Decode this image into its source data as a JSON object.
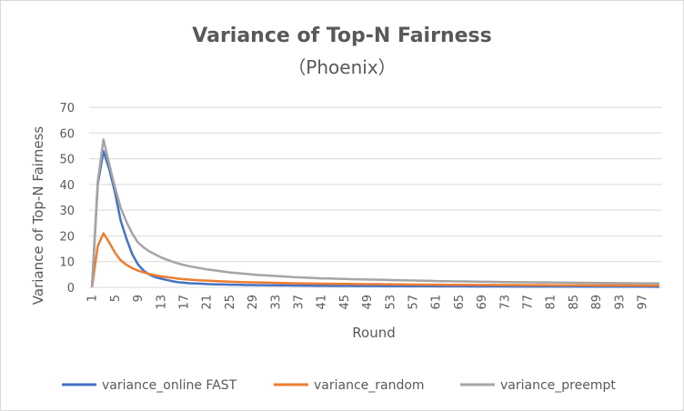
{
  "chart_data": {
    "type": "line",
    "title": "Variance of Top-N Fairness",
    "subtitle": "（Phoenix）",
    "xlabel": "Round",
    "ylabel": "Variance of Top-N Fairness",
    "ylim": [
      0,
      70
    ],
    "yticks": [
      "0",
      "10",
      "20",
      "30",
      "40",
      "50",
      "60",
      "70"
    ],
    "xticks": [
      "1",
      "5",
      "9",
      "13",
      "17",
      "21",
      "25",
      "29",
      "33",
      "37",
      "41",
      "45",
      "49",
      "53",
      "57",
      "61",
      "65",
      "69",
      "73",
      "77",
      "81",
      "85",
      "89",
      "93",
      "97"
    ],
    "x": [
      1,
      2,
      3,
      4,
      5,
      6,
      7,
      8,
      9,
      10,
      11,
      12,
      13,
      14,
      15,
      16,
      17,
      18,
      19,
      20,
      21,
      22,
      23,
      24,
      25,
      26,
      27,
      28,
      29,
      30,
      31,
      32,
      33,
      34,
      35,
      36,
      37,
      38,
      39,
      40,
      41,
      42,
      43,
      44,
      45,
      46,
      47,
      48,
      49,
      50,
      51,
      52,
      53,
      54,
      55,
      56,
      57,
      58,
      59,
      60,
      61,
      62,
      63,
      64,
      65,
      66,
      67,
      68,
      69,
      70,
      71,
      72,
      73,
      74,
      75,
      76,
      77,
      78,
      79,
      80,
      81,
      82,
      83,
      84,
      85,
      86,
      87,
      88,
      89,
      90,
      91,
      92,
      93,
      94,
      95,
      96,
      97,
      98,
      99,
      100
    ],
    "grid": true,
    "legend": "bottom",
    "series": [
      {
        "name": "variance_online FAST",
        "color": "#4472c4",
        "values": [
          0,
          40,
          53,
          46,
          37,
          26,
          19,
          13,
          9,
          6.5,
          5,
          4,
          3.4,
          2.9,
          2.4,
          2,
          1.8,
          1.6,
          1.5,
          1.4,
          1.3,
          1.2,
          1.15,
          1.1,
          1.05,
          1,
          0.95,
          0.9,
          0.88,
          0.85,
          0.82,
          0.8,
          0.78,
          0.76,
          0.74,
          0.72,
          0.7,
          0.68,
          0.66,
          0.64,
          0.62,
          0.6,
          0.59,
          0.58,
          0.57,
          0.56,
          0.55,
          0.54,
          0.53,
          0.52,
          0.51,
          0.5,
          0.49,
          0.48,
          0.47,
          0.46,
          0.45,
          0.44,
          0.43,
          0.42,
          0.41,
          0.4,
          0.4,
          0.39,
          0.38,
          0.38,
          0.37,
          0.36,
          0.36,
          0.35,
          0.35,
          0.34,
          0.34,
          0.33,
          0.33,
          0.32,
          0.32,
          0.31,
          0.31,
          0.3,
          0.3,
          0.3,
          0.29,
          0.29,
          0.29,
          0.28,
          0.28,
          0.28,
          0.27,
          0.27,
          0.27,
          0.26,
          0.26,
          0.26,
          0.25,
          0.25,
          0.25,
          0.25,
          0.24,
          0.24
        ]
      },
      {
        "name": "variance_random",
        "color": "#ed7d31",
        "values": [
          0,
          16,
          21,
          17.5,
          13.5,
          10.5,
          8.8,
          7.5,
          6.5,
          5.8,
          5.2,
          4.7,
          4.3,
          4,
          3.7,
          3.4,
          3.2,
          3,
          2.85,
          2.7,
          2.6,
          2.5,
          2.4,
          2.3,
          2.2,
          2.1,
          2.05,
          2,
          1.95,
          1.9,
          1.85,
          1.8,
          1.75,
          1.7,
          1.65,
          1.6,
          1.55,
          1.5,
          1.48,
          1.45,
          1.42,
          1.4,
          1.38,
          1.36,
          1.34,
          1.32,
          1.3,
          1.28,
          1.26,
          1.24,
          1.22,
          1.2,
          1.18,
          1.16,
          1.14,
          1.12,
          1.1,
          1.08,
          1.06,
          1.04,
          1.02,
          1,
          0.99,
          0.98,
          0.97,
          0.96,
          0.95,
          0.94,
          0.93,
          0.92,
          0.91,
          0.9,
          0.89,
          0.88,
          0.87,
          0.86,
          0.85,
          0.84,
          0.83,
          0.82,
          0.81,
          0.8,
          0.8,
          0.79,
          0.79,
          0.78,
          0.78,
          0.77,
          0.77,
          0.76,
          0.76,
          0.75,
          0.75,
          0.74,
          0.74,
          0.73,
          0.73,
          0.72,
          0.72,
          0.71
        ]
      },
      {
        "name": "variance_preempt",
        "color": "#a5a5a5",
        "values": [
          0,
          41,
          57.5,
          48,
          39,
          31,
          25.5,
          21,
          17.5,
          15.5,
          14,
          12.8,
          11.7,
          10.8,
          10,
          9.3,
          8.7,
          8.2,
          7.8,
          7.4,
          7,
          6.7,
          6.4,
          6.1,
          5.8,
          5.6,
          5.4,
          5.2,
          5,
          4.8,
          4.7,
          4.55,
          4.4,
          4.3,
          4.15,
          4,
          3.9,
          3.8,
          3.7,
          3.6,
          3.5,
          3.45,
          3.4,
          3.3,
          3.25,
          3.2,
          3.15,
          3.1,
          3.05,
          3,
          2.95,
          2.9,
          2.85,
          2.8,
          2.75,
          2.7,
          2.65,
          2.6,
          2.55,
          2.5,
          2.45,
          2.4,
          2.38,
          2.35,
          2.3,
          2.28,
          2.25,
          2.2,
          2.18,
          2.15,
          2.1,
          2.08,
          2.05,
          2.02,
          2,
          1.98,
          1.96,
          1.94,
          1.92,
          1.9,
          1.88,
          1.86,
          1.84,
          1.82,
          1.8,
          1.78,
          1.76,
          1.74,
          1.72,
          1.7,
          1.68,
          1.66,
          1.64,
          1.62,
          1.6,
          1.58,
          1.56,
          1.55,
          1.54,
          1.53
        ]
      }
    ]
  }
}
